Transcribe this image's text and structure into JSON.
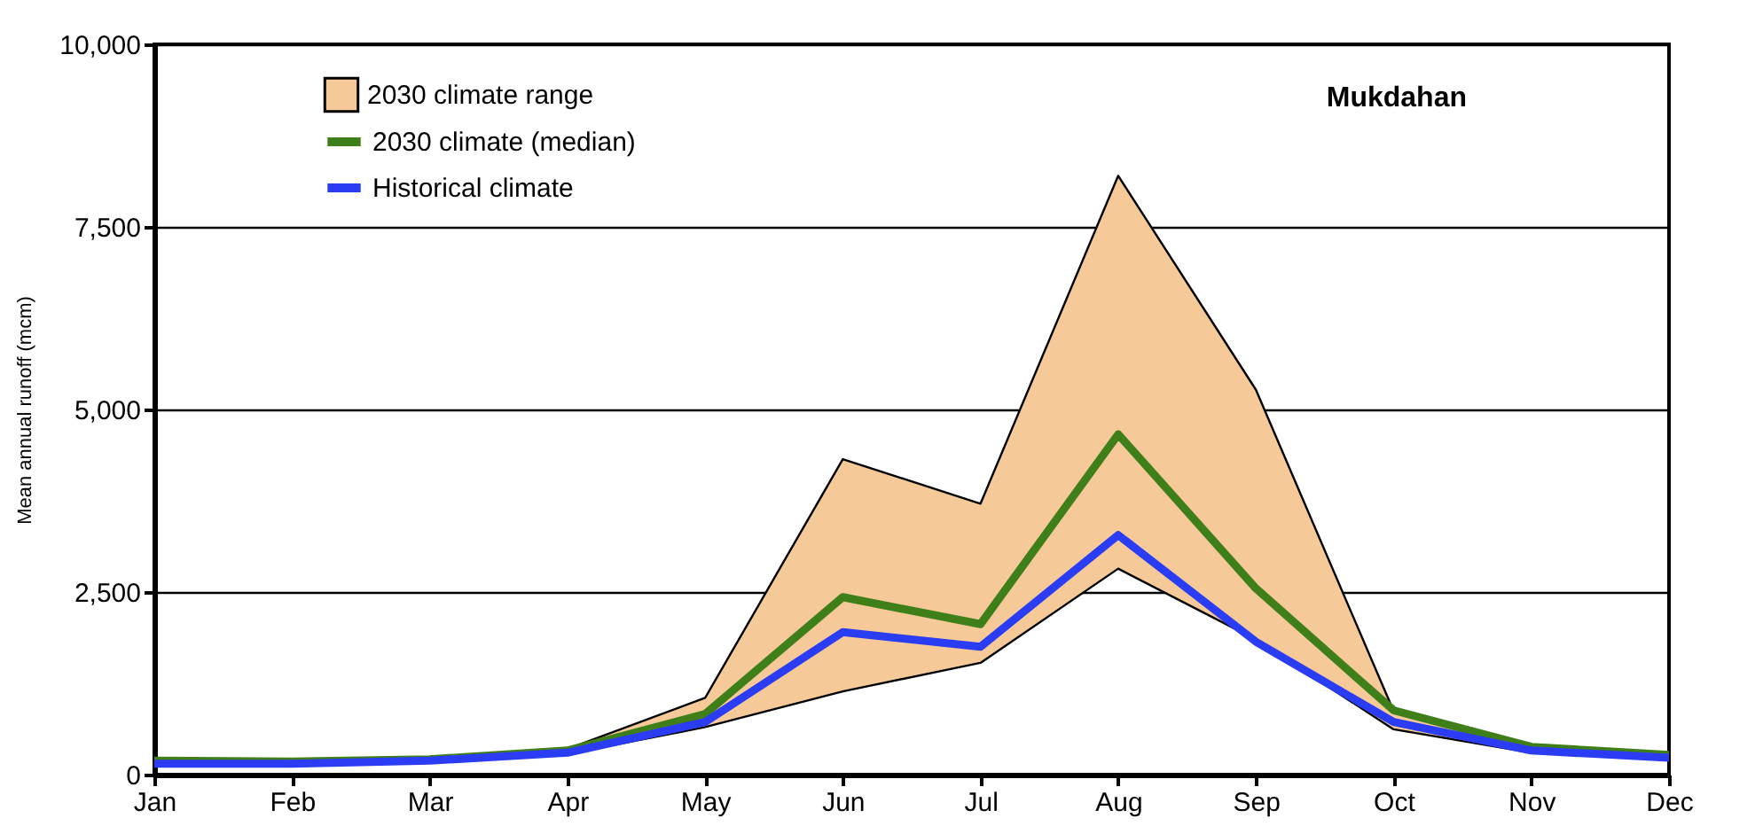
{
  "chart_data": {
    "type": "line",
    "annotations": [
      "Mukdahan"
    ],
    "ylabel": "Mean annual runoff (mcm)",
    "categories": [
      "Jan",
      "Feb",
      "Mar",
      "Apr",
      "May",
      "Jun",
      "Jul",
      "Aug",
      "Sep",
      "Oct",
      "Nov",
      "Dec"
    ],
    "series": [
      {
        "name": "2030 climate range",
        "type": "area",
        "color": "#f5c998",
        "values": [
          180,
          180,
          220,
          350,
          1050,
          4320,
          3710,
          8200,
          5270,
          870,
          380,
          260
        ]
      },
      {
        "color": "#000000",
        "values": [
          130,
          130,
          170,
          280,
          650,
          1140,
          1530,
          2820,
          1850,
          620,
          300,
          200
        ]
      },
      {
        "name": "2030 climate (median)",
        "color": "#3f7f1a",
        "values": [
          190,
          180,
          210,
          330,
          830,
          2430,
          2060,
          4660,
          2550,
          880,
          380,
          270
        ]
      },
      {
        "name": "Historical climate",
        "color": "#2b3cf5",
        "values": [
          150,
          150,
          190,
          300,
          720,
          1950,
          1750,
          3280,
          1820,
          720,
          330,
          230
        ]
      }
    ],
    "ylim": [
      0,
      10000
    ],
    "yticks": [
      0,
      {
        "value": 2500,
        "label": "2,500"
      },
      {
        "value": 5000,
        "label": "5,000"
      },
      {
        "value": 7500,
        "label": "7,500"
      },
      {
        "value": 10000,
        "label": "10,000"
      }
    ],
    "grid": "y",
    "legend": "top left"
  }
}
